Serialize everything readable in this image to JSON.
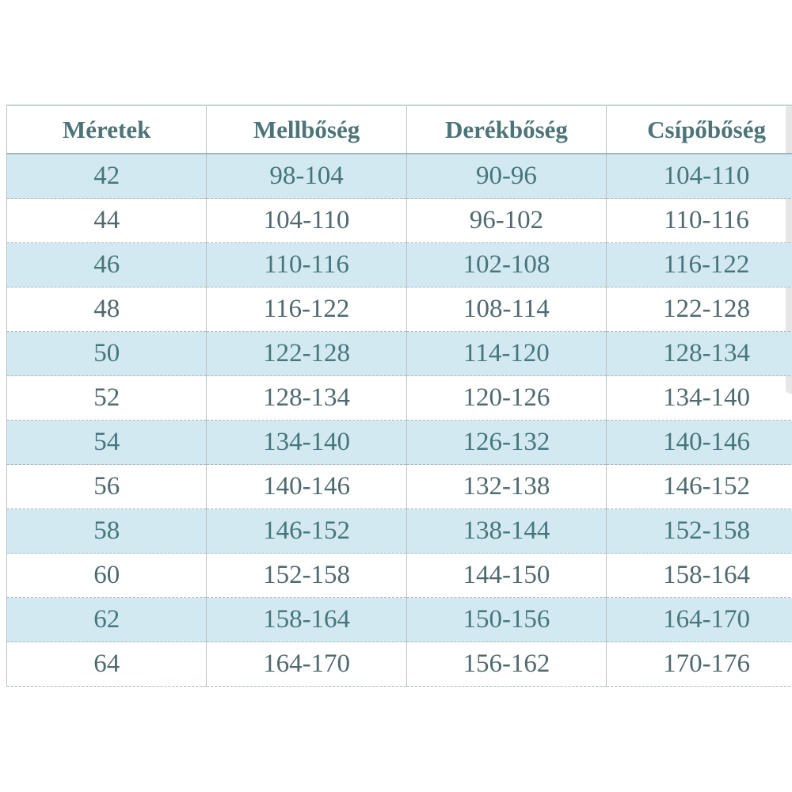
{
  "table": {
    "headers": [
      "Méretek",
      "Mellbőség",
      "Derékbőség",
      "Csípőbőség"
    ],
    "rows": [
      [
        "42",
        "98-104",
        "90-96",
        "104-110"
      ],
      [
        "44",
        "104-110",
        "96-102",
        "110-116"
      ],
      [
        "46",
        "110-116",
        "102-108",
        "116-122"
      ],
      [
        "48",
        "116-122",
        "108-114",
        "122-128"
      ],
      [
        "50",
        "122-128",
        "114-120",
        "128-134"
      ],
      [
        "52",
        "128-134",
        "120-126",
        "134-140"
      ],
      [
        "54",
        "134-140",
        "126-132",
        "140-146"
      ],
      [
        "56",
        "140-146",
        "132-138",
        "146-152"
      ],
      [
        "58",
        "146-152",
        "138-144",
        "152-158"
      ],
      [
        "60",
        "152-158",
        "144-150",
        "158-164"
      ],
      [
        "62",
        "158-164",
        "150-156",
        "164-170"
      ],
      [
        "64",
        "164-170",
        "156-162",
        "170-176"
      ]
    ],
    "colors": {
      "stripe": "#d3e9f2",
      "text": "#4e6a6e",
      "header_text": "#4d7478"
    }
  }
}
